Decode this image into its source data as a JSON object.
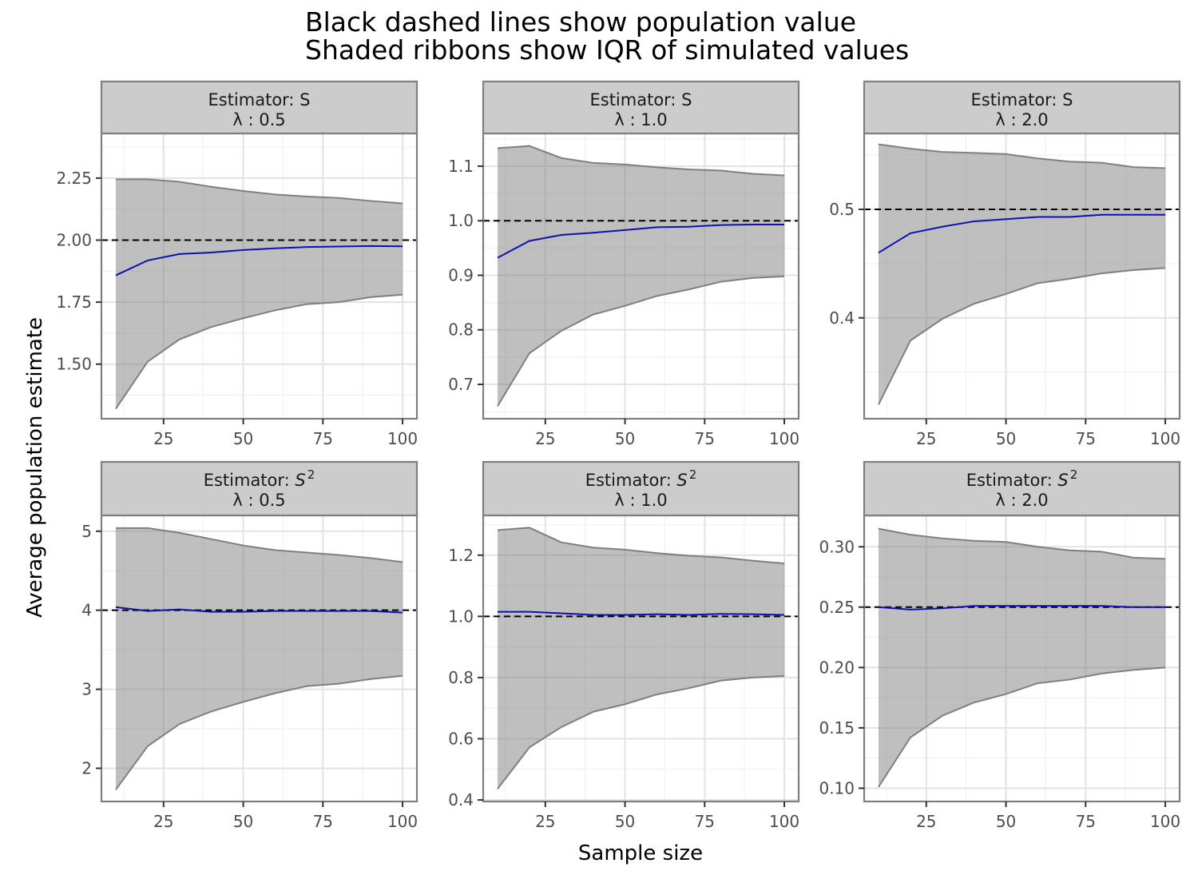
{
  "title_lines": [
    "Black dashed lines show population value",
    "Shaded ribbons show IQR of simulated values"
  ],
  "xlabel": "Sample size",
  "ylabel": "Average population estimate",
  "colors": {
    "ribbon": "#bdbdbd",
    "ribbon_edge": "#7f7f7f",
    "mean_line": "#1010b0",
    "population_line": "#000000",
    "strip_bg": "#cccccc",
    "panel_border": "#7f7f7f",
    "grid_major": "#e3e3e3",
    "grid_minor": "#f1f1f1",
    "tick_text": "#4d4d4d"
  },
  "chart_data": [
    {
      "type": "area",
      "strip": {
        "estimator": "Estimator: S",
        "lambda": "λ : 0.5"
      },
      "x": [
        10,
        20,
        30,
        40,
        50,
        60,
        70,
        80,
        90,
        100
      ],
      "xticks": [
        25,
        50,
        75,
        100
      ],
      "xlim": [
        5.5,
        104.5
      ],
      "ylim": [
        1.28,
        2.43
      ],
      "yticks": [
        1.5,
        1.75,
        2.0,
        2.25
      ],
      "ytick_labels": [
        "1.50",
        "1.75",
        "2.00",
        "2.25"
      ],
      "population_value": 2.0,
      "series": [
        {
          "role": "q25",
          "values": [
            1.32,
            1.51,
            1.6,
            1.65,
            1.685,
            1.717,
            1.742,
            1.75,
            1.77,
            1.78
          ]
        },
        {
          "role": "q75",
          "values": [
            2.245,
            2.245,
            2.235,
            2.215,
            2.198,
            2.184,
            2.176,
            2.17,
            2.158,
            2.148
          ]
        },
        {
          "role": "mean",
          "values": [
            1.858,
            1.918,
            1.944,
            1.95,
            1.96,
            1.967,
            1.972,
            1.974,
            1.976,
            1.975
          ]
        }
      ]
    },
    {
      "type": "area",
      "strip": {
        "estimator": "Estimator: S",
        "lambda": "λ : 1.0"
      },
      "x": [
        10,
        20,
        30,
        40,
        50,
        60,
        70,
        80,
        90,
        100
      ],
      "xticks": [
        25,
        50,
        75,
        100
      ],
      "xlim": [
        5.5,
        104.5
      ],
      "ylim": [
        0.637,
        1.16
      ],
      "yticks": [
        0.7,
        0.8,
        0.9,
        1.0,
        1.1
      ],
      "ytick_labels": [
        "0.7",
        "0.8",
        "0.9",
        "1.0",
        "1.1"
      ],
      "population_value": 1.0,
      "series": [
        {
          "role": "q25",
          "values": [
            0.66,
            0.757,
            0.798,
            0.828,
            0.844,
            0.862,
            0.874,
            0.888,
            0.895,
            0.898
          ]
        },
        {
          "role": "q75",
          "values": [
            1.133,
            1.137,
            1.115,
            1.106,
            1.103,
            1.098,
            1.094,
            1.092,
            1.086,
            1.083
          ]
        },
        {
          "role": "mean",
          "values": [
            0.932,
            0.963,
            0.974,
            0.978,
            0.983,
            0.988,
            0.989,
            0.992,
            0.993,
            0.993
          ]
        }
      ]
    },
    {
      "type": "area",
      "strip": {
        "estimator": "Estimator: S",
        "lambda": "λ : 2.0"
      },
      "x": [
        10,
        20,
        30,
        40,
        50,
        60,
        70,
        80,
        90,
        100
      ],
      "xticks": [
        25,
        50,
        75,
        100
      ],
      "xlim": [
        5.5,
        104.5
      ],
      "ylim": [
        0.307,
        0.57
      ],
      "yticks": [
        0.4,
        0.5
      ],
      "ytick_labels": [
        "0.4",
        "0.5"
      ],
      "population_value": 0.5,
      "series": [
        {
          "role": "q25",
          "values": [
            0.32,
            0.379,
            0.399,
            0.413,
            0.422,
            0.432,
            0.436,
            0.441,
            0.444,
            0.446
          ]
        },
        {
          "role": "q75",
          "values": [
            0.56,
            0.556,
            0.553,
            0.552,
            0.551,
            0.547,
            0.544,
            0.543,
            0.539,
            0.538
          ]
        },
        {
          "role": "mean",
          "values": [
            0.46,
            0.478,
            0.484,
            0.489,
            0.491,
            0.493,
            0.493,
            0.495,
            0.495,
            0.495
          ]
        }
      ]
    },
    {
      "type": "area",
      "strip": {
        "estimator": "Estimator: S²",
        "lambda": "λ : 0.5"
      },
      "x": [
        10,
        20,
        30,
        40,
        50,
        60,
        70,
        80,
        90,
        100
      ],
      "xticks": [
        25,
        50,
        75,
        100
      ],
      "xlim": [
        5.5,
        104.5
      ],
      "ylim": [
        1.58,
        5.2
      ],
      "yticks": [
        2,
        3,
        4,
        5
      ],
      "ytick_labels": [
        "2",
        "3",
        "4",
        "5"
      ],
      "population_value": 4.0,
      "series": [
        {
          "role": "q25",
          "values": [
            1.73,
            2.28,
            2.56,
            2.72,
            2.84,
            2.95,
            3.04,
            3.07,
            3.13,
            3.17
          ]
        },
        {
          "role": "q75",
          "values": [
            5.04,
            5.04,
            4.98,
            4.9,
            4.82,
            4.76,
            4.73,
            4.7,
            4.66,
            4.61
          ]
        },
        {
          "role": "mean",
          "values": [
            4.04,
            3.99,
            4.01,
            3.98,
            3.98,
            3.99,
            3.99,
            3.99,
            3.99,
            3.97
          ]
        }
      ]
    },
    {
      "type": "area",
      "strip": {
        "estimator": "Estimator: S²",
        "lambda": "λ : 1.0"
      },
      "x": [
        10,
        20,
        30,
        40,
        50,
        60,
        70,
        80,
        90,
        100
      ],
      "xticks": [
        25,
        50,
        75,
        100
      ],
      "xlim": [
        5.5,
        104.5
      ],
      "ylim": [
        0.395,
        1.33
      ],
      "yticks": [
        0.4,
        0.6,
        0.8,
        1.0,
        1.2
      ],
      "ytick_labels": [
        "0.4",
        "0.6",
        "0.8",
        "1.0",
        "1.2"
      ],
      "population_value": 1.0,
      "series": [
        {
          "role": "q25",
          "values": [
            0.436,
            0.572,
            0.638,
            0.688,
            0.713,
            0.745,
            0.765,
            0.79,
            0.8,
            0.805
          ]
        },
        {
          "role": "q75",
          "values": [
            1.282,
            1.29,
            1.242,
            1.225,
            1.218,
            1.207,
            1.198,
            1.193,
            1.182,
            1.173
          ]
        },
        {
          "role": "mean",
          "values": [
            1.015,
            1.015,
            1.01,
            1.005,
            1.005,
            1.007,
            1.005,
            1.008,
            1.007,
            1.005
          ]
        }
      ]
    },
    {
      "type": "area",
      "strip": {
        "estimator": "Estimator: S²",
        "lambda": "λ : 2.0"
      },
      "x": [
        10,
        20,
        30,
        40,
        50,
        60,
        70,
        80,
        90,
        100
      ],
      "xticks": [
        25,
        50,
        75,
        100
      ],
      "xlim": [
        5.5,
        104.5
      ],
      "ylim": [
        0.089,
        0.326
      ],
      "yticks": [
        0.1,
        0.15,
        0.2,
        0.25,
        0.3
      ],
      "ytick_labels": [
        "0.10",
        "0.15",
        "0.20",
        "0.25",
        "0.30"
      ],
      "population_value": 0.25,
      "series": [
        {
          "role": "q25",
          "values": [
            0.101,
            0.142,
            0.16,
            0.171,
            0.178,
            0.187,
            0.19,
            0.195,
            0.198,
            0.2
          ]
        },
        {
          "role": "q75",
          "values": [
            0.315,
            0.31,
            0.307,
            0.305,
            0.304,
            0.3,
            0.297,
            0.296,
            0.291,
            0.29
          ]
        },
        {
          "role": "mean",
          "values": [
            0.25,
            0.248,
            0.249,
            0.251,
            0.251,
            0.251,
            0.251,
            0.251,
            0.25,
            0.25
          ]
        }
      ]
    }
  ]
}
